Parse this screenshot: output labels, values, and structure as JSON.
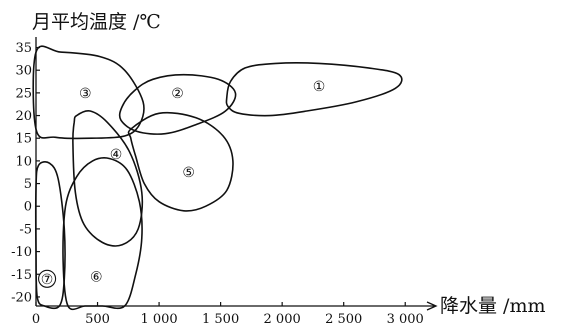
{
  "chart_data": {
    "type": "region-outline",
    "title": "",
    "ylabel": "月平均温度 /℃",
    "xlabel": "降水量 /mm",
    "xlim": [
      0,
      3250
    ],
    "ylim": [
      -22,
      36
    ],
    "xticks": [
      0,
      500,
      1000,
      1500,
      2000,
      2500,
      3000
    ],
    "xtick_labels": [
      "0",
      "500",
      "1 000",
      "1 500",
      "2 000",
      "2 500",
      "3 000"
    ],
    "yticks": [
      -20,
      -15,
      -10,
      -5,
      0,
      5,
      10,
      15,
      20,
      25,
      30,
      35
    ],
    "ytick_labels": [
      "-20",
      "-15",
      "-10",
      "-5",
      "0",
      "5",
      "10",
      "15",
      "20",
      "25",
      "30",
      "35"
    ],
    "grid": false,
    "regions": [
      {
        "label": "①",
        "label_at": [
          2300,
          26.5
        ],
        "outline": [
          [
            1550,
            24
          ],
          [
            1580,
            27.5
          ],
          [
            1700,
            30.5
          ],
          [
            1950,
            31.5
          ],
          [
            2300,
            31.5
          ],
          [
            2700,
            30.5
          ],
          [
            2950,
            29
          ],
          [
            2920,
            26
          ],
          [
            2600,
            23
          ],
          [
            2200,
            21
          ],
          [
            1900,
            20
          ],
          [
            1650,
            20.5
          ],
          [
            1560,
            22
          ]
        ]
      },
      {
        "label": "②",
        "label_at": [
          1150,
          25
        ],
        "outline": [
          [
            700,
            22
          ],
          [
            800,
            25.5
          ],
          [
            950,
            28
          ],
          [
            1200,
            29
          ],
          [
            1480,
            28
          ],
          [
            1620,
            25
          ],
          [
            1540,
            21
          ],
          [
            1300,
            18
          ],
          [
            1050,
            16
          ],
          [
            820,
            16.5
          ],
          [
            690,
            19
          ]
        ]
      },
      {
        "label": "③",
        "label_at": [
          400,
          25
        ],
        "outline": [
          [
            0,
            34
          ],
          [
            200,
            34
          ],
          [
            520,
            33
          ],
          [
            720,
            30
          ],
          [
            870,
            23
          ],
          [
            840,
            18
          ],
          [
            720,
            15.5
          ],
          [
            450,
            15
          ],
          [
            160,
            15.2
          ],
          [
            0,
            17
          ]
        ]
      },
      {
        "label": "④",
        "label_at": [
          650,
          11.5
        ],
        "outline": [
          [
            330,
            20
          ],
          [
            440,
            21
          ],
          [
            580,
            18.5
          ],
          [
            760,
            12
          ],
          [
            860,
            3
          ],
          [
            830,
            -5
          ],
          [
            700,
            -8.5
          ],
          [
            540,
            -8
          ],
          [
            390,
            -4
          ],
          [
            320,
            3
          ],
          [
            300,
            14
          ],
          [
            310,
            18.5
          ]
        ]
      },
      {
        "label": "⑤",
        "label_at": [
          1240,
          7.5
        ],
        "outline": [
          [
            770,
            17
          ],
          [
            1000,
            20.5
          ],
          [
            1300,
            19.5
          ],
          [
            1520,
            15.5
          ],
          [
            1600,
            10
          ],
          [
            1550,
            3.5
          ],
          [
            1380,
            0
          ],
          [
            1200,
            -1
          ],
          [
            1000,
            1
          ],
          [
            880,
            5
          ],
          [
            810,
            11
          ],
          [
            770,
            15
          ]
        ]
      },
      {
        "label": "⑥",
        "label_at": [
          490,
          -15.5
        ],
        "outline": [
          [
            600,
            10.5
          ],
          [
            740,
            8
          ],
          [
            840,
            1
          ],
          [
            860,
            -7
          ],
          [
            810,
            -15
          ],
          [
            720,
            -22
          ],
          [
            540,
            -22
          ],
          [
            400,
            -22
          ],
          [
            260,
            -22
          ],
          [
            220,
            -12
          ],
          [
            240,
            0
          ],
          [
            330,
            6.5
          ],
          [
            460,
            10
          ]
        ]
      },
      {
        "label": "⑦",
        "label_at": [
          90,
          -16
        ],
        "outline": [
          [
            20,
            9
          ],
          [
            110,
            9.5
          ],
          [
            180,
            6
          ],
          [
            230,
            -5
          ],
          [
            230,
            -16
          ],
          [
            190,
            -22
          ],
          [
            70,
            -22
          ],
          [
            10,
            -20
          ],
          [
            0,
            -10
          ],
          [
            0,
            4
          ]
        ]
      }
    ]
  }
}
